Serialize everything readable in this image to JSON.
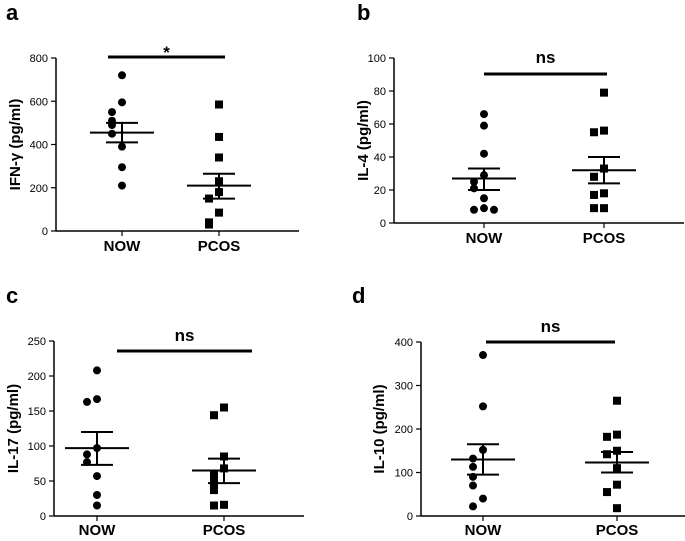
{
  "chart_data": [
    {
      "type": "scatter",
      "panel": "a",
      "ylabel": "IFN-γ (pg/ml)",
      "ylim": [
        0,
        800
      ],
      "yticks": [
        0,
        200,
        400,
        600,
        800
      ],
      "categories": [
        "NOW",
        "PCOS"
      ],
      "significance": "*",
      "series": [
        {
          "name": "NOW",
          "marker": "circle",
          "values": [
            720,
            595,
            550,
            510,
            490,
            450,
            390,
            295,
            210
          ],
          "mean": 455,
          "sem_low": 410,
          "sem_high": 500
        },
        {
          "name": "PCOS",
          "marker": "square",
          "values": [
            585,
            435,
            340,
            230,
            180,
            150,
            85,
            40,
            30
          ],
          "mean": 210,
          "sem_low": 150,
          "sem_high": 265
        }
      ]
    },
    {
      "type": "scatter",
      "panel": "b",
      "ylabel": "IL-4 (pg/ml)",
      "ylim": [
        0,
        100
      ],
      "yticks": [
        0,
        20,
        40,
        60,
        80,
        100
      ],
      "categories": [
        "NOW",
        "PCOS"
      ],
      "significance": "ns",
      "series": [
        {
          "name": "NOW",
          "marker": "circle",
          "values": [
            66,
            59,
            42,
            29,
            25,
            21,
            15,
            9,
            8,
            8
          ],
          "mean": 27,
          "sem_low": 20,
          "sem_high": 33
        },
        {
          "name": "PCOS",
          "marker": "square",
          "values": [
            79,
            56,
            55,
            33,
            28,
            18,
            17,
            9,
            9
          ],
          "mean": 32,
          "sem_low": 24,
          "sem_high": 40
        }
      ]
    },
    {
      "type": "scatter",
      "panel": "c",
      "ylabel": "IL-17 (pg/ml)",
      "ylim": [
        0,
        250
      ],
      "yticks": [
        0,
        50,
        100,
        150,
        200,
        250
      ],
      "categories": [
        "NOW",
        "PCOS"
      ],
      "significance": "ns",
      "series": [
        {
          "name": "NOW",
          "marker": "circle",
          "values": [
            208,
            167,
            163,
            97,
            88,
            77,
            57,
            30,
            15
          ],
          "mean": 97,
          "sem_low": 73,
          "sem_high": 120
        },
        {
          "name": "PCOS",
          "marker": "square",
          "values": [
            155,
            144,
            85,
            68,
            58,
            48,
            37,
            16,
            15
          ],
          "mean": 65,
          "sem_low": 47,
          "sem_high": 82
        }
      ]
    },
    {
      "type": "scatter",
      "panel": "d",
      "ylabel": "IL-10 (pg/ml)",
      "ylim": [
        0,
        400
      ],
      "yticks": [
        0,
        100,
        200,
        300,
        400
      ],
      "categories": [
        "NOW",
        "PCOS"
      ],
      "significance": "ns",
      "series": [
        {
          "name": "NOW",
          "marker": "circle",
          "values": [
            370,
            252,
            152,
            132,
            113,
            90,
            70,
            40,
            22
          ],
          "mean": 130,
          "sem_low": 95,
          "sem_high": 165
        },
        {
          "name": "PCOS",
          "marker": "square",
          "values": [
            265,
            187,
            182,
            150,
            142,
            110,
            72,
            55,
            18
          ],
          "mean": 123,
          "sem_low": 100,
          "sem_high": 147
        }
      ]
    }
  ]
}
